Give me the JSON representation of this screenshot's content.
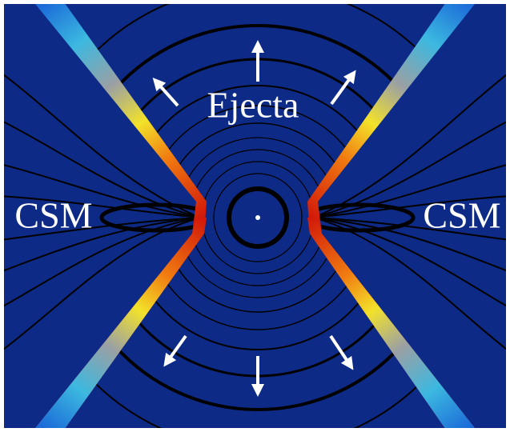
{
  "labels": {
    "top": "Ejecta",
    "left": "CSM",
    "right": "CSM"
  }
}
